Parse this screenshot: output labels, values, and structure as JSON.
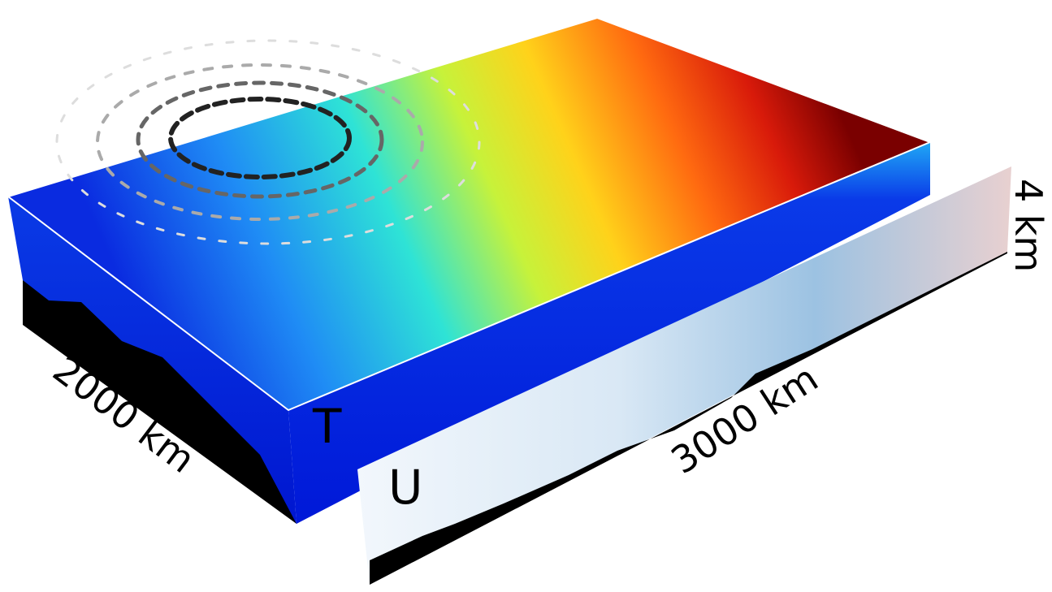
{
  "labels": {
    "width": "2000 km",
    "length": "3000 km",
    "depth": "4 km",
    "top_field": "T",
    "section_field": "U"
  }
}
